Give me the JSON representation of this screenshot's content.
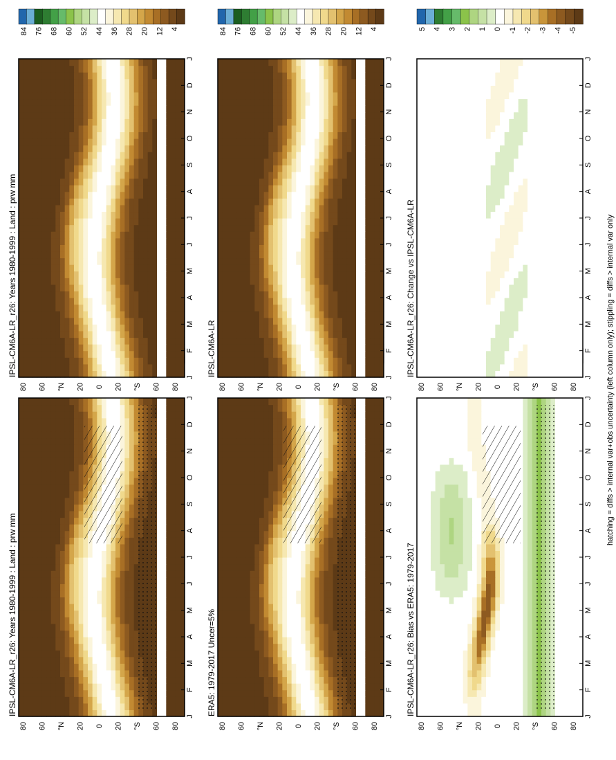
{
  "figure": {
    "footnote": "hatching = diffs > internal var+obs uncertainty (left column only); stippling = diffs > internal var only"
  },
  "axes": {
    "months": [
      "J",
      "F",
      "M",
      "A",
      "M",
      "J",
      "J",
      "A",
      "S",
      "O",
      "N",
      "D",
      "J"
    ],
    "lat_ticks": [
      "80",
      "60",
      "°N",
      "20",
      "0",
      "20",
      "°S",
      "60",
      "80"
    ]
  },
  "colorbars": {
    "abs": {
      "labels": [
        "84",
        "76",
        "68",
        "60",
        "52",
        "44",
        "36",
        "28",
        "20",
        "12",
        "4"
      ],
      "colors": [
        "#2166ac",
        "#6baed6",
        "#1b5e20",
        "#2e7d32",
        "#43a047",
        "#66bb6a",
        "#8bc34a",
        "#aed581",
        "#c5e1a5",
        "#dcedc8",
        "#ffffff",
        "#fbf5dc",
        "#f6e8b1",
        "#f0d98c",
        "#e3c16f",
        "#d4a64a",
        "#c28a32",
        "#a86f25",
        "#8d5a20",
        "#74491b",
        "#5d3a16"
      ]
    },
    "diff": {
      "labels": [
        "5",
        "4",
        "3",
        "2",
        "1",
        "0",
        "-1",
        "-2",
        "-3",
        "-4",
        "-5"
      ],
      "colors": [
        "#2166ac",
        "#6baed6",
        "#2e7d32",
        "#43a047",
        "#66bb6a",
        "#8bc34a",
        "#aed581",
        "#c5e1a5",
        "#dcedc8",
        "#ffffff",
        "#fbf5dc",
        "#f6e8b1",
        "#f0d98c",
        "#e3c16f",
        "#c9953a",
        "#a86f25",
        "#8d5a20",
        "#74491b",
        "#5d3a16"
      ]
    }
  },
  "chart_data": [
    {
      "type": "heatmap",
      "panel": "top-left",
      "title": "IPSL-CM6A-LR_r26: Years 1980-1999 : Land : prw mm",
      "field": "absolute",
      "colorbar": "abs",
      "hatched": true,
      "stippled": true
    },
    {
      "type": "heatmap",
      "panel": "top-right",
      "title": "IPSL-CM6A-LR_r26: Years 1980-1999 : Land : prw mm",
      "field": "absolute",
      "colorbar": "abs",
      "hatched": false,
      "stippled": false
    },
    {
      "type": "heatmap",
      "panel": "middle-left",
      "title": "ERA5: 1979-2017 Uncer=5%",
      "field": "absolute",
      "colorbar": "abs",
      "hatched": true,
      "stippled": true
    },
    {
      "type": "heatmap",
      "panel": "middle-right",
      "title": "IPSL-CM6A-LR",
      "field": "absolute",
      "colorbar": "abs",
      "hatched": false,
      "stippled": false
    },
    {
      "type": "heatmap",
      "panel": "bottom-left",
      "title": "IPSL-CM6A-LR_r26: Bias vs ERA5: 1979-2017",
      "field": "bias",
      "colorbar": "diff",
      "hatched": true,
      "stippled": true
    },
    {
      "type": "heatmap",
      "panel": "bottom-right",
      "title": "IPSL-CM6A-LR_r26: Change vs IPSL-CM6A-LR",
      "field": "change",
      "colorbar": "diff",
      "hatched": false,
      "stippled": false
    }
  ]
}
